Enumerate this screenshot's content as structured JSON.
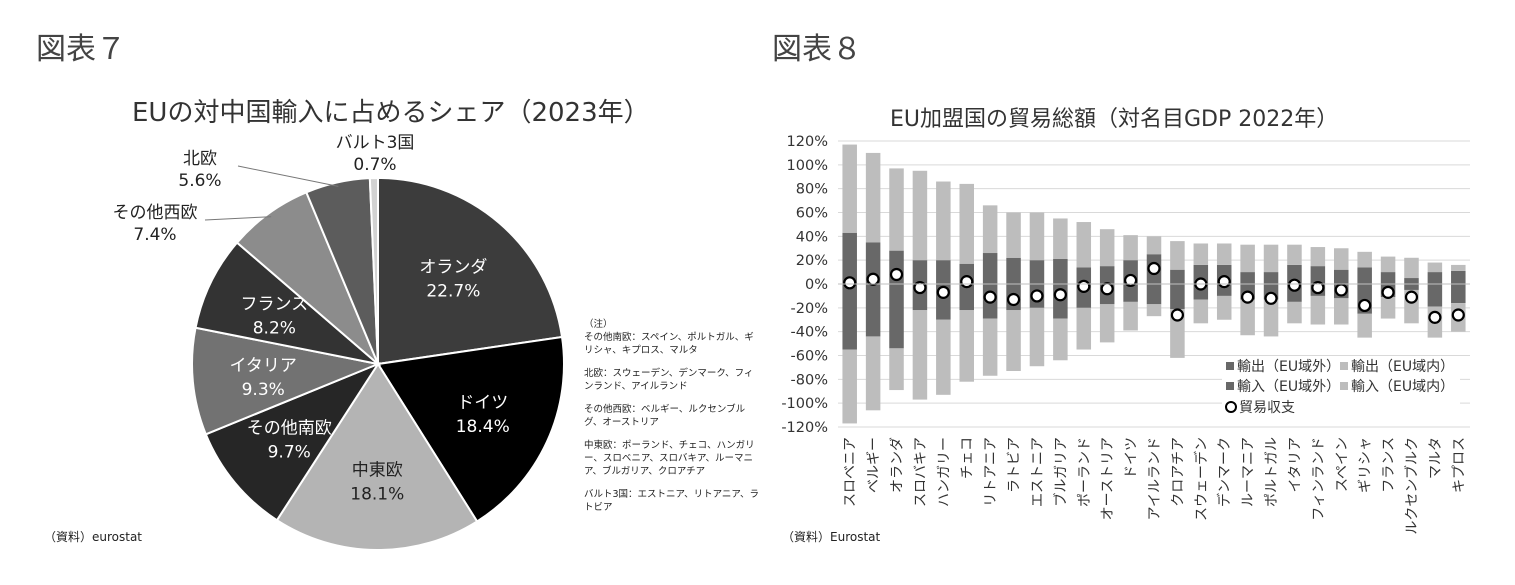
{
  "figures": {
    "left_label": "図表７",
    "right_label": "図表８",
    "left_source": "（資料）eurostat",
    "right_source": "（資料）Eurostat"
  },
  "notes": {
    "heading": "（注）",
    "items": [
      "その他南欧：スペイン、ポルトガル、ギリシャ、キプロス、マルタ",
      "北欧：スウェーデン、デンマーク、フィンランド、アイルランド",
      "その他西欧：ベルギー、ルクセンブルグ、オーストリア",
      "中東欧：ポーランド、チェコ、ハンガリー、スロベニア、スロバキア、ルーマニア、ブルガリア、クロアチア",
      "バルト3国：エストニア、リトアニア、ラトビア"
    ]
  },
  "chart_data": [
    {
      "type": "pie",
      "title": "EUの対中国輸入に占めるシェア（2023年）",
      "slices": [
        {
          "label": "オランダ",
          "value": 22.7,
          "display": "22.7%",
          "color": "#3c3c3c",
          "label_color": "#ffffff"
        },
        {
          "label": "ドイツ",
          "value": 18.4,
          "display": "18.4%",
          "color": "#000000",
          "label_color": "#ffffff"
        },
        {
          "label": "中東欧",
          "value": 18.1,
          "display": "18.1%",
          "color": "#b4b4b4",
          "label_color": "#222222"
        },
        {
          "label": "その他南欧",
          "value": 9.7,
          "display": "9.7%",
          "color": "#262626",
          "label_color": "#ffffff"
        },
        {
          "label": "イタリア",
          "value": 9.3,
          "display": "9.3%",
          "color": "#727272",
          "label_color": "#ffffff"
        },
        {
          "label": "フランス",
          "value": 8.2,
          "display": "8.2%",
          "color": "#333333",
          "label_color": "#ffffff"
        },
        {
          "label": "その他西欧",
          "value": 7.4,
          "display": "7.4%",
          "color": "#8c8c8c",
          "label_color": "#222222"
        },
        {
          "label": "北欧",
          "value": 5.6,
          "display": "5.6%",
          "color": "#5c5c5c",
          "label_color": "#222222"
        },
        {
          "label": "バルト3国",
          "value": 0.7,
          "display": "0.7%",
          "color": "#d2d2d2",
          "label_color": "#222222"
        }
      ]
    },
    {
      "type": "bar",
      "stacked": true,
      "title": "EU加盟国の貿易総額（対名目GDP 2022年）",
      "ylim": [
        -120,
        120
      ],
      "yticks": [
        120,
        100,
        80,
        60,
        40,
        20,
        0,
        -20,
        -40,
        -60,
        -80,
        -100,
        -120
      ],
      "ytick_labels": [
        "120%",
        "100%",
        "80%",
        "60%",
        "40%",
        "20%",
        "0%",
        "-20%",
        "-40%",
        "-60%",
        "-80%",
        "-100%",
        "-120%"
      ],
      "grid": true,
      "legend_position": "bottom-right",
      "categories": [
        "スロベニア",
        "ベルギー",
        "オランダ",
        "スロバキア",
        "ハンガリー",
        "チェコ",
        "リトアニア",
        "ラトビア",
        "エストニア",
        "ブルガリア",
        "ポーランド",
        "オーストリア",
        "ドイツ",
        "アイルランド",
        "クロアチア",
        "スウェーデン",
        "デンマーク",
        "ルーマニア",
        "ポルトガル",
        "イタリア",
        "フィンランド",
        "スペイン",
        "ギリシャ",
        "フランス",
        "ルクセンブルク",
        "マルタ",
        "キプロス"
      ],
      "series": [
        {
          "name": "輸出（EU域外）",
          "color": "#686868",
          "values": [
            43,
            35,
            28,
            20,
            20,
            17,
            26,
            22,
            20,
            21,
            14,
            15,
            20,
            25,
            12,
            16,
            16,
            10,
            10,
            16,
            15,
            12,
            14,
            10,
            5,
            10,
            11
          ]
        },
        {
          "name": "輸出（EU域内）",
          "color": "#bdbdbd",
          "values": [
            74,
            75,
            69,
            75,
            66,
            67,
            40,
            38,
            40,
            34,
            38,
            31,
            21,
            15,
            24,
            18,
            18,
            23,
            23,
            17,
            16,
            18,
            13,
            13,
            17,
            8,
            5
          ]
        },
        {
          "name": "輸入（EU域外）",
          "color": "#686868",
          "values": [
            -55,
            -44,
            -54,
            -22,
            -30,
            -22,
            -29,
            -22,
            -20,
            -29,
            -20,
            -17,
            -15,
            -17,
            -21,
            -13,
            -10,
            -13,
            -13,
            -15,
            -10,
            -12,
            -25,
            -11,
            -5,
            -19,
            -16
          ]
        },
        {
          "name": "輸入（EU域内）",
          "color": "#bdbdbd",
          "values": [
            -62,
            -62,
            -35,
            -75,
            -63,
            -60,
            -48,
            -51,
            -49,
            -35,
            -35,
            -32,
            -24,
            -10,
            -41,
            -20,
            -20,
            -30,
            -31,
            -18,
            -24,
            -22,
            -20,
            -18,
            -28,
            -26,
            -24
          ]
        }
      ],
      "balance": {
        "name": "貿易収支",
        "values": [
          1,
          4,
          8,
          -3,
          -7,
          2,
          -11,
          -13,
          -10,
          -9,
          -2,
          -4,
          3,
          13,
          -26,
          0,
          2,
          -11,
          -12,
          -1,
          -3,
          -5,
          -18,
          -7,
          -11,
          -28,
          -26
        ]
      }
    }
  ]
}
